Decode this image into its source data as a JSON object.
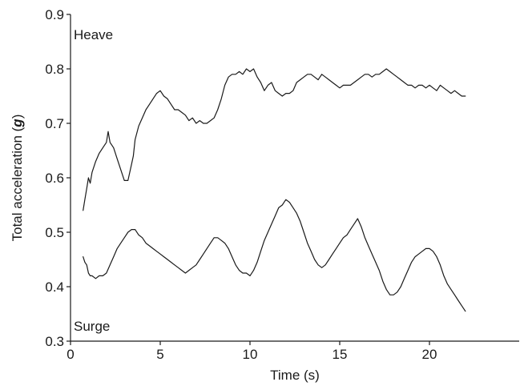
{
  "chart_data": {
    "type": "line",
    "title": "",
    "xlabel": "Time (s)",
    "ylabel": "Total acceleration (",
    "ylabel_symbol": "g",
    "ylabel_close": ")",
    "xlim": [
      0,
      25
    ],
    "ylim": [
      0.3,
      0.9
    ],
    "xticks": [
      0,
      5,
      10,
      15,
      20
    ],
    "xtick_labels": [
      "0",
      "5",
      "10",
      "15",
      "20"
    ],
    "yticks": [
      0.3,
      0.4,
      0.5,
      0.6,
      0.7,
      0.8,
      0.9
    ],
    "ytick_labels": [
      "0.3",
      "0.4",
      "0.5",
      "0.6",
      "0.7",
      "0.8",
      "0.9"
    ],
    "grid": false,
    "legend": "none",
    "line_color": "#1a1a1a",
    "series": [
      {
        "name": "Heave",
        "x": [
          0.7,
          0.8,
          0.9,
          1.0,
          1.1,
          1.2,
          1.4,
          1.6,
          1.8,
          2.0,
          2.1,
          2.2,
          2.4,
          2.6,
          2.8,
          3.0,
          3.2,
          3.4,
          3.5,
          3.6,
          3.8,
          4.0,
          4.2,
          4.4,
          4.6,
          4.8,
          5.0,
          5.2,
          5.4,
          5.6,
          5.8,
          6.0,
          6.2,
          6.4,
          6.6,
          6.8,
          7.0,
          7.2,
          7.4,
          7.6,
          7.8,
          8.0,
          8.2,
          8.4,
          8.6,
          8.8,
          9.0,
          9.2,
          9.4,
          9.6,
          9.8,
          10.0,
          10.2,
          10.4,
          10.6,
          10.8,
          11.0,
          11.2,
          11.4,
          11.6,
          11.8,
          12.0,
          12.2,
          12.4,
          12.6,
          12.8,
          13.0,
          13.2,
          13.4,
          13.6,
          13.8,
          14.0,
          14.2,
          14.4,
          14.6,
          14.8,
          15.0,
          15.2,
          15.4,
          15.6,
          15.8,
          16.0,
          16.2,
          16.4,
          16.6,
          16.8,
          17.0,
          17.2,
          17.4,
          17.6,
          17.8,
          18.0,
          18.2,
          18.4,
          18.6,
          18.8,
          19.0,
          19.2,
          19.4,
          19.6,
          19.8,
          20.0,
          20.2,
          20.4,
          20.6,
          20.8,
          21.0,
          21.2,
          21.4,
          21.6,
          21.8,
          22.0
        ],
        "values": [
          0.54,
          0.56,
          0.58,
          0.6,
          0.59,
          0.61,
          0.63,
          0.645,
          0.655,
          0.665,
          0.685,
          0.665,
          0.655,
          0.635,
          0.615,
          0.595,
          0.595,
          0.625,
          0.64,
          0.67,
          0.695,
          0.71,
          0.725,
          0.735,
          0.745,
          0.755,
          0.76,
          0.75,
          0.745,
          0.735,
          0.725,
          0.725,
          0.72,
          0.715,
          0.705,
          0.71,
          0.7,
          0.705,
          0.7,
          0.7,
          0.705,
          0.71,
          0.725,
          0.745,
          0.77,
          0.785,
          0.79,
          0.79,
          0.795,
          0.79,
          0.8,
          0.795,
          0.8,
          0.785,
          0.775,
          0.76,
          0.77,
          0.775,
          0.76,
          0.755,
          0.75,
          0.755,
          0.755,
          0.76,
          0.775,
          0.78,
          0.785,
          0.79,
          0.79,
          0.785,
          0.78,
          0.79,
          0.785,
          0.78,
          0.775,
          0.77,
          0.765,
          0.77,
          0.77,
          0.77,
          0.775,
          0.78,
          0.785,
          0.79,
          0.79,
          0.785,
          0.79,
          0.79,
          0.795,
          0.8,
          0.795,
          0.79,
          0.785,
          0.78,
          0.775,
          0.77,
          0.77,
          0.765,
          0.77,
          0.77,
          0.765,
          0.77,
          0.765,
          0.76,
          0.77,
          0.765,
          0.76,
          0.755,
          0.76,
          0.755,
          0.75,
          0.75
        ]
      },
      {
        "name": "Surge",
        "x": [
          0.7,
          0.8,
          0.9,
          1.0,
          1.1,
          1.2,
          1.4,
          1.6,
          1.8,
          2.0,
          2.2,
          2.4,
          2.6,
          2.8,
          3.0,
          3.2,
          3.4,
          3.6,
          3.8,
          4.0,
          4.2,
          4.4,
          4.6,
          4.8,
          5.0,
          5.2,
          5.4,
          5.6,
          5.8,
          6.0,
          6.2,
          6.4,
          6.6,
          6.8,
          7.0,
          7.2,
          7.4,
          7.6,
          7.8,
          8.0,
          8.2,
          8.4,
          8.6,
          8.8,
          9.0,
          9.2,
          9.4,
          9.6,
          9.8,
          10.0,
          10.2,
          10.4,
          10.6,
          10.8,
          11.0,
          11.2,
          11.4,
          11.6,
          11.8,
          12.0,
          12.2,
          12.4,
          12.6,
          12.8,
          13.0,
          13.2,
          13.4,
          13.6,
          13.8,
          14.0,
          14.2,
          14.4,
          14.6,
          14.8,
          15.0,
          15.2,
          15.4,
          15.6,
          15.8,
          16.0,
          16.2,
          16.4,
          16.6,
          16.8,
          17.0,
          17.2,
          17.4,
          17.6,
          17.8,
          18.0,
          18.2,
          18.4,
          18.6,
          18.8,
          19.0,
          19.2,
          19.4,
          19.6,
          19.8,
          20.0,
          20.2,
          20.4,
          20.6,
          20.8,
          21.0,
          21.2,
          21.4,
          21.6,
          21.8,
          22.0
        ],
        "values": [
          0.455,
          0.445,
          0.44,
          0.425,
          0.42,
          0.42,
          0.415,
          0.42,
          0.42,
          0.425,
          0.44,
          0.455,
          0.47,
          0.48,
          0.49,
          0.5,
          0.505,
          0.505,
          0.495,
          0.49,
          0.48,
          0.475,
          0.47,
          0.465,
          0.46,
          0.455,
          0.45,
          0.445,
          0.44,
          0.435,
          0.43,
          0.425,
          0.43,
          0.435,
          0.44,
          0.45,
          0.46,
          0.47,
          0.48,
          0.49,
          0.49,
          0.485,
          0.48,
          0.47,
          0.455,
          0.44,
          0.43,
          0.425,
          0.425,
          0.42,
          0.43,
          0.445,
          0.465,
          0.485,
          0.5,
          0.515,
          0.53,
          0.545,
          0.55,
          0.56,
          0.555,
          0.545,
          0.535,
          0.52,
          0.5,
          0.48,
          0.465,
          0.45,
          0.44,
          0.435,
          0.44,
          0.45,
          0.46,
          0.47,
          0.48,
          0.49,
          0.495,
          0.505,
          0.515,
          0.525,
          0.51,
          0.49,
          0.475,
          0.46,
          0.445,
          0.43,
          0.41,
          0.395,
          0.385,
          0.385,
          0.39,
          0.4,
          0.415,
          0.43,
          0.445,
          0.455,
          0.46,
          0.465,
          0.47,
          0.47,
          0.465,
          0.455,
          0.44,
          0.42,
          0.405,
          0.395,
          0.385,
          0.375,
          0.365,
          0.355
        ]
      }
    ]
  }
}
